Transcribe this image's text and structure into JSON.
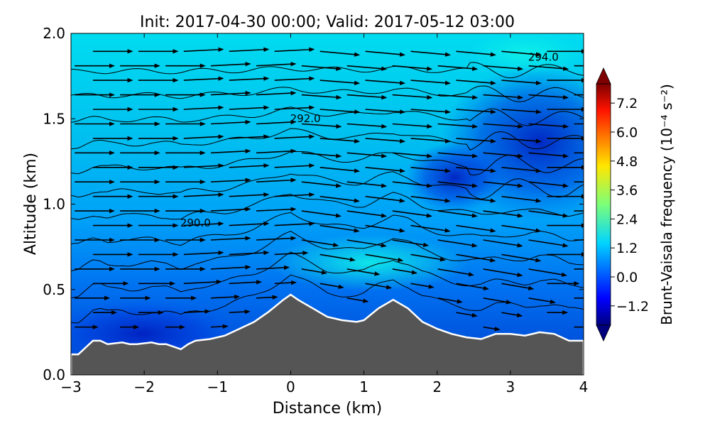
{
  "chart_data": {
    "type": "contourf",
    "title": "Init: 2017-04-30 00:00; Valid: 2017-05-12 03:00",
    "xlabel": "Distance (km)",
    "ylabel": "Altitude (km)",
    "xlim": [
      -3,
      4
    ],
    "ylim": [
      0.0,
      2.0
    ],
    "xticks": [
      -3,
      -2,
      -1,
      0,
      1,
      2,
      3,
      4
    ],
    "xtick_labels": [
      "−3",
      "−2",
      "−1",
      "0",
      "1",
      "2",
      "3",
      "4"
    ],
    "yticks": [
      0.0,
      0.5,
      1.0,
      1.5,
      2.0
    ],
    "ytick_labels": [
      "0.0",
      "0.5",
      "1.0",
      "1.5",
      "2.0"
    ],
    "colorbar": {
      "label": "Brunt-Vaisala frequency (10⁻⁴ s⁻²)",
      "range": [
        -2.0,
        8.0
      ],
      "extend": "both",
      "ticks": [
        -1.2,
        0.0,
        1.2,
        2.4,
        3.6,
        4.8,
        6.0,
        7.2
      ],
      "tick_labels": [
        "−1.2",
        "0.0",
        "1.2",
        "2.4",
        "3.6",
        "4.8",
        "6.0",
        "7.2"
      ],
      "colormap": "jet"
    },
    "contour_labels": [
      {
        "text": "290.0",
        "x": -1.3,
        "y": 0.87
      },
      {
        "text": "292.0",
        "x": 0.2,
        "y": 1.48
      },
      {
        "text": "294.0",
        "x": 3.45,
        "y": 1.84
      }
    ],
    "terrain": {
      "x": [
        -3.0,
        -2.9,
        -2.8,
        -2.7,
        -2.6,
        -2.5,
        -2.3,
        -2.2,
        -2.1,
        -1.9,
        -1.8,
        -1.7,
        -1.5,
        -1.4,
        -1.3,
        -1.1,
        -0.9,
        -0.7,
        -0.5,
        -0.3,
        -0.1,
        0.0,
        0.1,
        0.3,
        0.5,
        0.7,
        0.9,
        1.0,
        1.2,
        1.4,
        1.6,
        1.8,
        2.0,
        2.2,
        2.4,
        2.6,
        2.8,
        3.0,
        3.2,
        3.4,
        3.6,
        3.8,
        4.0
      ],
      "y": [
        0.12,
        0.12,
        0.16,
        0.2,
        0.2,
        0.18,
        0.19,
        0.18,
        0.18,
        0.19,
        0.18,
        0.18,
        0.15,
        0.18,
        0.2,
        0.21,
        0.23,
        0.27,
        0.31,
        0.37,
        0.44,
        0.47,
        0.44,
        0.39,
        0.34,
        0.32,
        0.31,
        0.32,
        0.39,
        0.44,
        0.39,
        0.31,
        0.27,
        0.24,
        0.22,
        0.21,
        0.24,
        0.24,
        0.23,
        0.25,
        0.24,
        0.2,
        0.2
      ]
    },
    "field_description": "",
    "grid": false
  }
}
